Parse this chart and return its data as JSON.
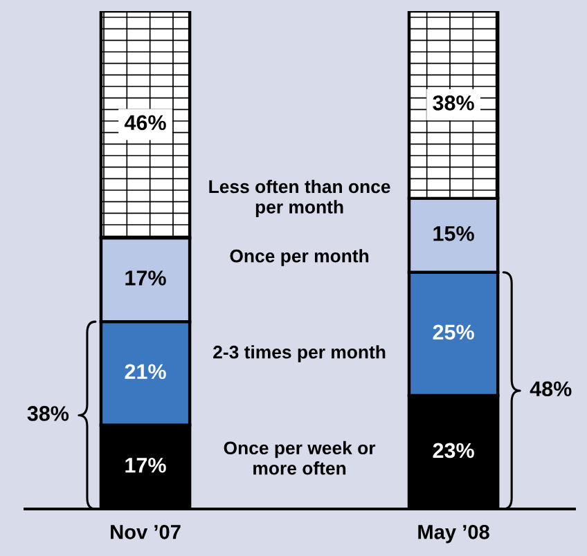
{
  "chart_data": {
    "type": "bar",
    "stacked": true,
    "categories": [
      "Nov ’07",
      "May ’08"
    ],
    "series": [
      {
        "name": "Once per week or more often",
        "color": "#000000",
        "values": [
          17,
          23
        ],
        "value_labels": [
          "17%",
          "23%"
        ]
      },
      {
        "name": "2-3 times per month",
        "color": "#3b78c0",
        "values": [
          21,
          25
        ],
        "value_labels": [
          "21%",
          "25%"
        ]
      },
      {
        "name": "Once per month",
        "color": "#b8c8e6",
        "values": [
          17,
          15
        ],
        "value_labels": [
          "17%",
          "15%"
        ]
      },
      {
        "name": "Less often than once per month",
        "color": "#ffffff",
        "values": [
          46,
          38
        ],
        "value_labels": [
          "46%",
          "38%"
        ]
      }
    ],
    "annotations": [
      "38%",
      "48%"
    ],
    "tick_labels": "x",
    "legend": false
  }
}
